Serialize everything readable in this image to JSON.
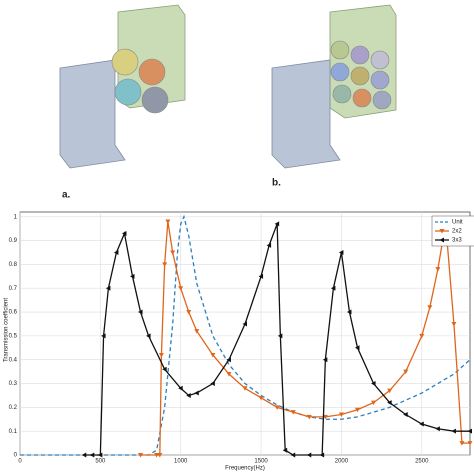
{
  "panels": [
    "a.",
    "b."
  ],
  "chart_data": {
    "type": "line",
    "xlabel": "Frequency(Hz)",
    "ylabel": "Transmission coefficient",
    "xlim": [
      0,
      2800
    ],
    "xticks": [
      0,
      500,
      1000,
      1500,
      2000,
      2500
    ],
    "ylim": [
      0,
      1.02
    ],
    "yticks": [
      0,
      0.1,
      0.2,
      0.3,
      0.4,
      0.5,
      0.6,
      0.7,
      0.8,
      0.9,
      1
    ],
    "grid": true,
    "legend": "top-right",
    "series": [
      {
        "name": "Unit",
        "color": "#2a7fc0",
        "dash": true,
        "marker": "none",
        "x": [
          0,
          800,
          850,
          900,
          950,
          980,
          1000,
          1020,
          1050,
          1100,
          1200,
          1300,
          1400,
          1500,
          1600,
          1700,
          1800,
          1900,
          2000,
          2100,
          2200,
          2300,
          2400,
          2500,
          2600,
          2700,
          2800
        ],
        "values": [
          0,
          0,
          0.02,
          0.2,
          0.55,
          0.85,
          0.97,
          1.0,
          0.92,
          0.72,
          0.5,
          0.38,
          0.3,
          0.25,
          0.21,
          0.18,
          0.16,
          0.15,
          0.15,
          0.16,
          0.18,
          0.2,
          0.23,
          0.26,
          0.3,
          0.34,
          0.4
        ]
      },
      {
        "name": "2x2",
        "color": "#e0661c",
        "dash": false,
        "marker": "down",
        "x": [
          750,
          850,
          870,
          880,
          900,
          920,
          950,
          1000,
          1050,
          1100,
          1200,
          1300,
          1400,
          1500,
          1600,
          1700,
          1800,
          1900,
          2000,
          2100,
          2200,
          2300,
          2400,
          2500,
          2550,
          2600,
          2630,
          2650,
          2700,
          2750,
          2800
        ],
        "values": [
          0,
          0,
          0,
          0.42,
          0.8,
          0.98,
          0.85,
          0.7,
          0.6,
          0.52,
          0.42,
          0.34,
          0.28,
          0.24,
          0.2,
          0.18,
          0.16,
          0.16,
          0.17,
          0.19,
          0.22,
          0.27,
          0.35,
          0.5,
          0.62,
          0.78,
          0.9,
          0.96,
          0.55,
          0.05,
          0.05
        ]
      },
      {
        "name": "3x3",
        "color": "#111111",
        "dash": false,
        "marker": "left",
        "x": [
          400,
          450,
          500,
          520,
          550,
          600,
          650,
          700,
          750,
          800,
          900,
          1000,
          1050,
          1100,
          1200,
          1300,
          1400,
          1500,
          1550,
          1600,
          1620,
          1650,
          1700,
          1800,
          1880,
          1900,
          1950,
          2000,
          2050,
          2100,
          2200,
          2300,
          2400,
          2500,
          2600,
          2700,
          2800
        ],
        "values": [
          0,
          0,
          0,
          0.5,
          0.7,
          0.85,
          0.93,
          0.75,
          0.6,
          0.5,
          0.36,
          0.28,
          0.25,
          0.26,
          0.3,
          0.4,
          0.55,
          0.75,
          0.88,
          0.97,
          0.5,
          0.02,
          0,
          0,
          0,
          0.4,
          0.7,
          0.85,
          0.6,
          0.45,
          0.3,
          0.22,
          0.17,
          0.13,
          0.11,
          0.1,
          0.1
        ]
      }
    ]
  }
}
